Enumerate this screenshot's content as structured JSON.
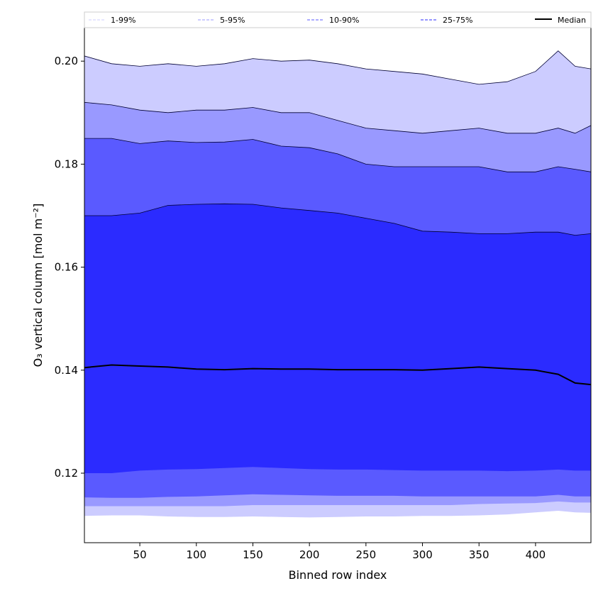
{
  "chart_data": {
    "type": "area",
    "xlabel": "Binned row index",
    "ylabel": "O₃ vertical column [mol m⁻²]",
    "xlim": [
      1,
      449
    ],
    "ylim": [
      0.1065,
      0.2065
    ],
    "xticks": [
      50,
      100,
      150,
      200,
      250,
      300,
      350,
      400
    ],
    "xtick_labels": [
      "50",
      "100",
      "150",
      "200",
      "250",
      "300",
      "350",
      "400"
    ],
    "yticks": [
      0.12,
      0.14,
      0.16,
      0.18,
      0.2
    ],
    "ytick_labels": [
      "0.12",
      "0.14",
      "0.16",
      "0.18",
      "0.20"
    ],
    "grid": false,
    "legend_position": "top, spanning full width above plot",
    "x": [
      1,
      25,
      50,
      75,
      100,
      125,
      150,
      175,
      200,
      225,
      250,
      275,
      300,
      325,
      350,
      375,
      400,
      420,
      435,
      449
    ],
    "bands": [
      {
        "name": "1-99%",
        "color": "#ccccff",
        "lower": [
          0.1117,
          0.1118,
          0.1118,
          0.1116,
          0.1115,
          0.1115,
          0.1116,
          0.1115,
          0.1114,
          0.1115,
          0.1116,
          0.1116,
          0.1117,
          0.1117,
          0.1118,
          0.112,
          0.1124,
          0.1127,
          0.1124,
          0.1123
        ],
        "upper": [
          0.201,
          0.1995,
          0.199,
          0.1995,
          0.199,
          0.1995,
          0.2005,
          0.2,
          0.2002,
          0.1995,
          0.1985,
          0.198,
          0.1975,
          0.1965,
          0.1955,
          0.196,
          0.198,
          0.202,
          0.199,
          0.1985
        ]
      },
      {
        "name": "5-95%",
        "color": "#9999ff",
        "lower": [
          0.1136,
          0.1136,
          0.1136,
          0.1136,
          0.1136,
          0.1136,
          0.1138,
          0.1138,
          0.1138,
          0.1138,
          0.1138,
          0.1138,
          0.1138,
          0.1138,
          0.114,
          0.1141,
          0.1142,
          0.1145,
          0.1143,
          0.1143
        ],
        "upper": [
          0.192,
          0.1915,
          0.1905,
          0.19,
          0.1905,
          0.1905,
          0.191,
          0.19,
          0.19,
          0.1885,
          0.187,
          0.1865,
          0.186,
          0.1865,
          0.187,
          0.186,
          0.186,
          0.187,
          0.186,
          0.1875
        ]
      },
      {
        "name": "10-90%",
        "color": "#5a5aff",
        "lower": [
          0.1153,
          0.1152,
          0.1152,
          0.1154,
          0.1155,
          0.1157,
          0.1159,
          0.1158,
          0.1157,
          0.1156,
          0.1156,
          0.1156,
          0.1155,
          0.1155,
          0.1155,
          0.1155,
          0.1155,
          0.1158,
          0.1155,
          0.1155
        ],
        "upper": [
          0.185,
          0.185,
          0.184,
          0.1845,
          0.1842,
          0.1843,
          0.1848,
          0.1835,
          0.1832,
          0.182,
          0.18,
          0.1795,
          0.1795,
          0.1795,
          0.1795,
          0.1785,
          0.1785,
          0.1795,
          0.179,
          0.1785
        ]
      },
      {
        "name": "25-75%",
        "color": "#2b2bff",
        "lower": [
          0.12,
          0.12,
          0.1205,
          0.1207,
          0.1208,
          0.121,
          0.1212,
          0.121,
          0.1208,
          0.1207,
          0.1207,
          0.1206,
          0.1205,
          0.1205,
          0.1205,
          0.1204,
          0.1205,
          0.1207,
          0.1205,
          0.1205
        ],
        "upper": [
          0.17,
          0.17,
          0.1705,
          0.172,
          0.1722,
          0.1723,
          0.1722,
          0.1715,
          0.171,
          0.1705,
          0.1695,
          0.1685,
          0.167,
          0.1668,
          0.1665,
          0.1665,
          0.1668,
          0.1668,
          0.1662,
          0.1665
        ]
      }
    ],
    "median": {
      "name": "Median",
      "color": "#000000",
      "values": [
        0.1405,
        0.141,
        0.1408,
        0.1406,
        0.1402,
        0.1401,
        0.1403,
        0.1402,
        0.1402,
        0.1401,
        0.1401,
        0.1401,
        0.14,
        0.1403,
        0.1406,
        0.1403,
        0.14,
        0.1392,
        0.1375,
        0.1372
      ]
    },
    "legend": [
      {
        "label": "1-99%",
        "color": "#ccccff",
        "dash": "dashed",
        "lw": 1
      },
      {
        "label": "5-95%",
        "color": "#9999ff",
        "dash": "dashed",
        "lw": 1
      },
      {
        "label": "10-90%",
        "color": "#5a5aff",
        "dash": "dashed",
        "lw": 1
      },
      {
        "label": "25-75%",
        "color": "#2b2bff",
        "dash": "dashed",
        "lw": 1
      },
      {
        "label": "Median",
        "color": "#000000",
        "dash": "solid",
        "lw": 2
      }
    ]
  }
}
